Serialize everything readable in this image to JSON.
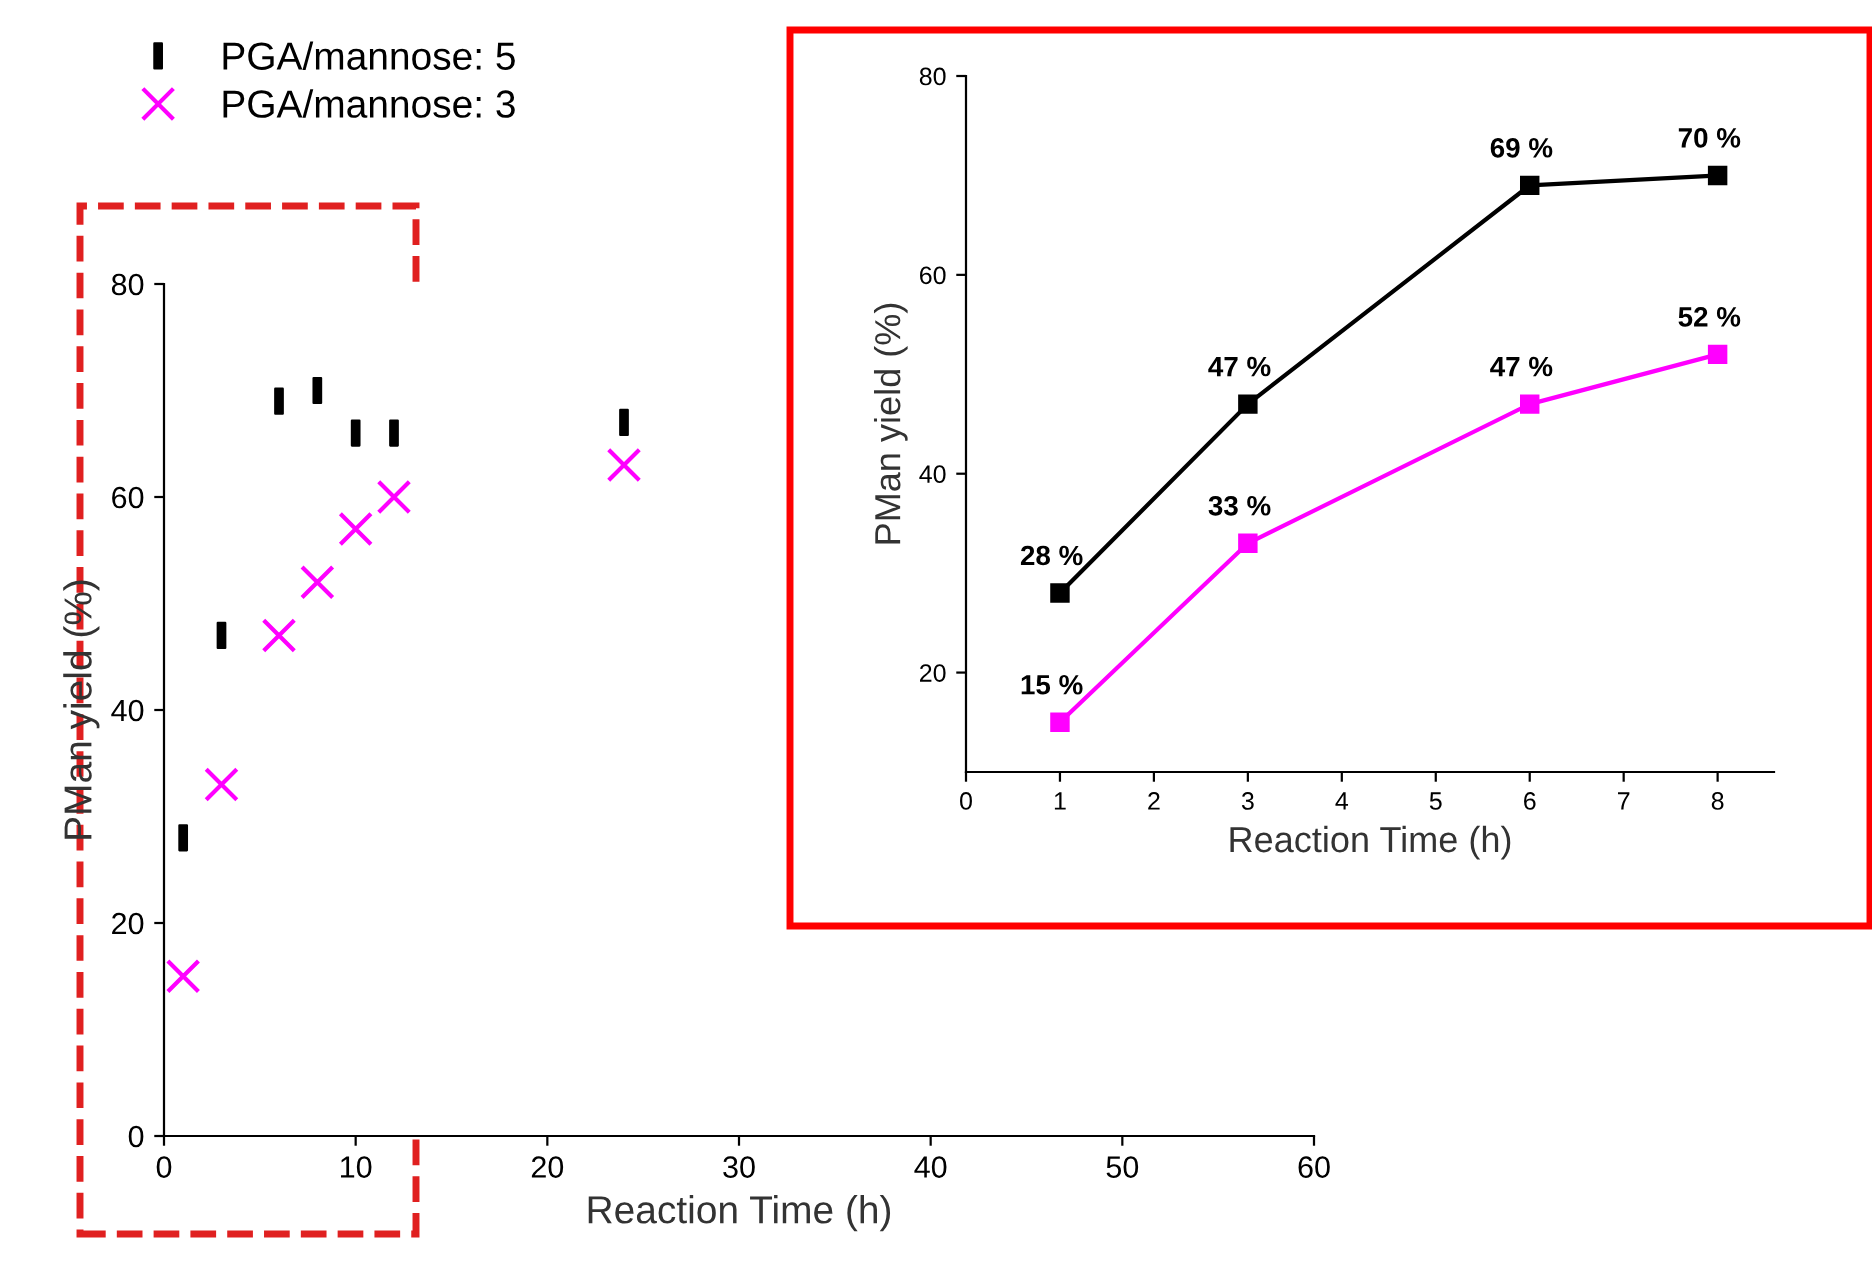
{
  "chart_data": [
    {
      "type": "scatter",
      "xlabel": "Reaction Time (h)",
      "ylabel": "PMan yield (%)",
      "xlim": [
        0,
        60
      ],
      "xticks": [
        0,
        10,
        20,
        30,
        40,
        50,
        60
      ],
      "ylim": [
        0,
        80
      ],
      "yticks": [
        0,
        20,
        40,
        60,
        80
      ],
      "legend": "top left",
      "grid": false,
      "x": [
        1,
        3,
        6,
        8,
        10,
        12,
        24
      ],
      "series": [
        {
          "name": "PGA/mannose: 5",
          "color": "#000000",
          "marker": "square",
          "values": [
            28,
            47,
            69,
            70,
            66,
            66,
            67
          ]
        },
        {
          "name": "PGA/mannose: 3",
          "color": "#ff00ff",
          "marker": "cross",
          "values": [
            15,
            33,
            47,
            52,
            57,
            60,
            63
          ]
        }
      ]
    },
    {
      "type": "line",
      "xlabel": "Reaction Time (h)",
      "ylabel": "PMan yield (%)",
      "xlim": [
        0,
        8.6
      ],
      "xticks": [
        0,
        1,
        2,
        3,
        4,
        5,
        6,
        7,
        8
      ],
      "ylim": [
        10,
        80
      ],
      "yticks": [
        20,
        40,
        60,
        80
      ],
      "marker": "square",
      "line_style": "solid",
      "grid": false,
      "x": [
        1,
        3,
        6,
        8
      ],
      "series": [
        {
          "color": "#000000",
          "values": [
            28,
            47,
            69,
            70
          ],
          "value_labels": [
            "28 %",
            "47 %",
            "69 %",
            "70 %"
          ]
        },
        {
          "color": "#ff00ff",
          "values": [
            15,
            33,
            47,
            52
          ],
          "value_labels": [
            "15 %",
            "33 %",
            "47 %",
            "52 %"
          ]
        }
      ]
    }
  ]
}
